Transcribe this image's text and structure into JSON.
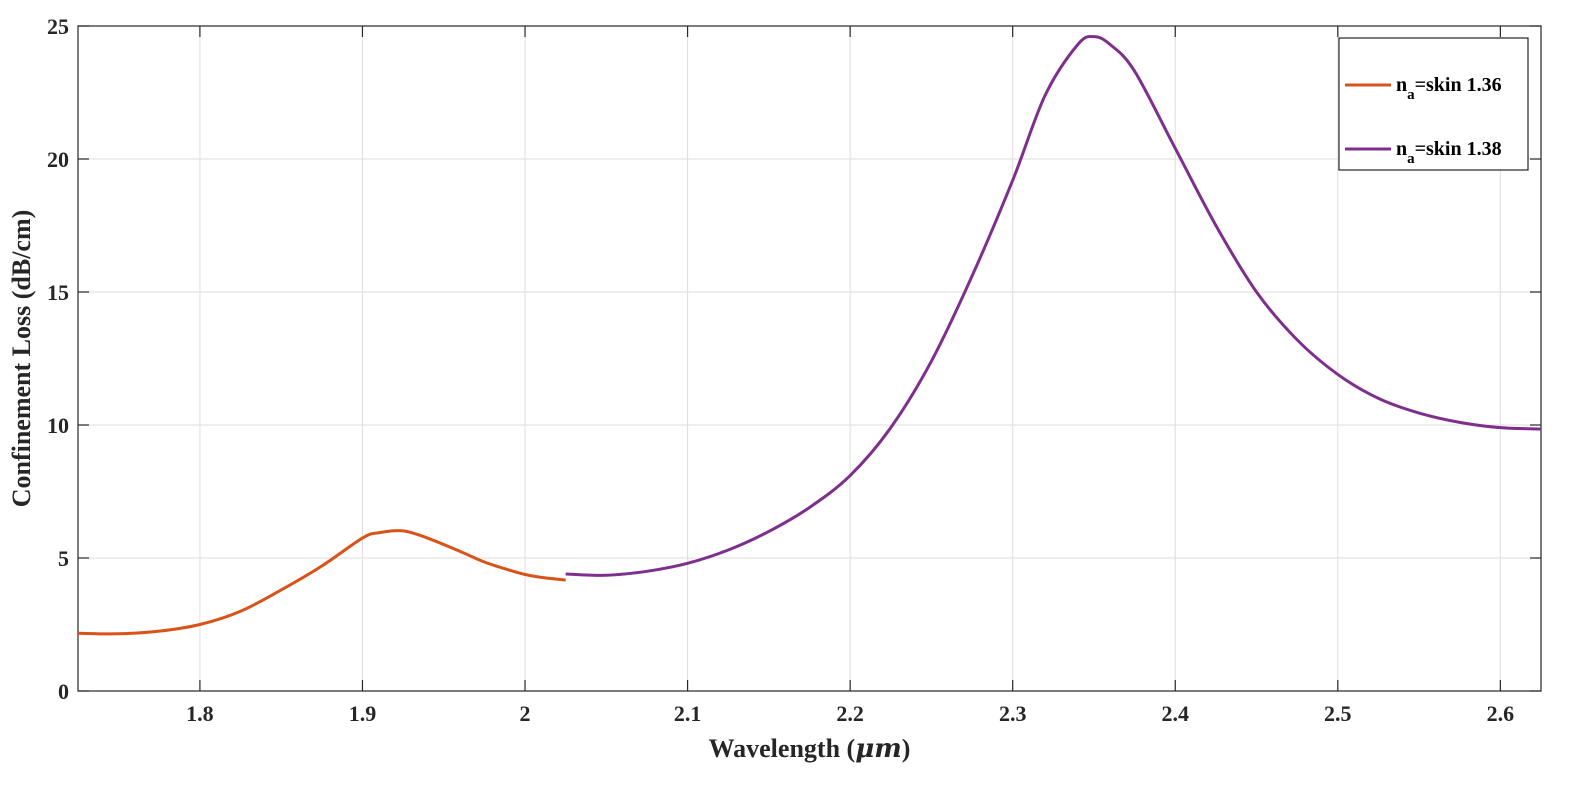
{
  "chart_data": {
    "type": "line",
    "title": "",
    "xlabel": "Wavelength (",
    "xlabel_unit": "μm",
    "xlabel_close": ")",
    "ylabel": "Confinement Loss (dB/cm)",
    "xlim": [
      1.725,
      2.625
    ],
    "ylim": [
      0,
      25
    ],
    "xticks": [
      1.8,
      1.9,
      2.0,
      2.1,
      2.2,
      2.3,
      2.4,
      2.5,
      2.6
    ],
    "xtick_labels": [
      "1.8",
      "1.9",
      "2",
      "2.1",
      "2.2",
      "2.3",
      "2.4",
      "2.5",
      "2.6"
    ],
    "yticks": [
      0,
      5,
      10,
      15,
      20,
      25
    ],
    "ytick_labels": [
      "0",
      "5",
      "10",
      "15",
      "20",
      "25"
    ],
    "grid": true,
    "legend_position": "top-right",
    "series": [
      {
        "name_main": "n",
        "name_sub": "a",
        "name_rest": "=skin 1.36",
        "color": "#d95319",
        "x": [
          1.725,
          1.75,
          1.775,
          1.8,
          1.825,
          1.85,
          1.875,
          1.9,
          1.91,
          1.925,
          1.94,
          1.96,
          1.975,
          1.99,
          2.0,
          2.01,
          2.025
        ],
        "y": [
          2.17,
          2.15,
          2.25,
          2.5,
          3.0,
          3.8,
          4.7,
          5.75,
          5.95,
          6.02,
          5.75,
          5.25,
          4.85,
          4.55,
          4.38,
          4.27,
          4.17
        ]
      },
      {
        "name_main": "n",
        "name_sub": "a",
        "name_rest": "=skin 1.38",
        "color": "#7e2f8e",
        "x": [
          2.025,
          2.05,
          2.075,
          2.1,
          2.125,
          2.15,
          2.175,
          2.2,
          2.225,
          2.25,
          2.275,
          2.3,
          2.32,
          2.34,
          2.35,
          2.36,
          2.375,
          2.4,
          2.425,
          2.45,
          2.475,
          2.5,
          2.525,
          2.55,
          2.575,
          2.6,
          2.625
        ],
        "y": [
          4.4,
          4.35,
          4.5,
          4.8,
          5.3,
          6.0,
          6.9,
          8.1,
          9.9,
          12.4,
          15.6,
          19.2,
          22.4,
          24.3,
          24.6,
          24.3,
          23.3,
          20.4,
          17.5,
          15.0,
          13.2,
          11.9,
          11.0,
          10.45,
          10.1,
          9.9,
          9.85
        ]
      }
    ]
  }
}
